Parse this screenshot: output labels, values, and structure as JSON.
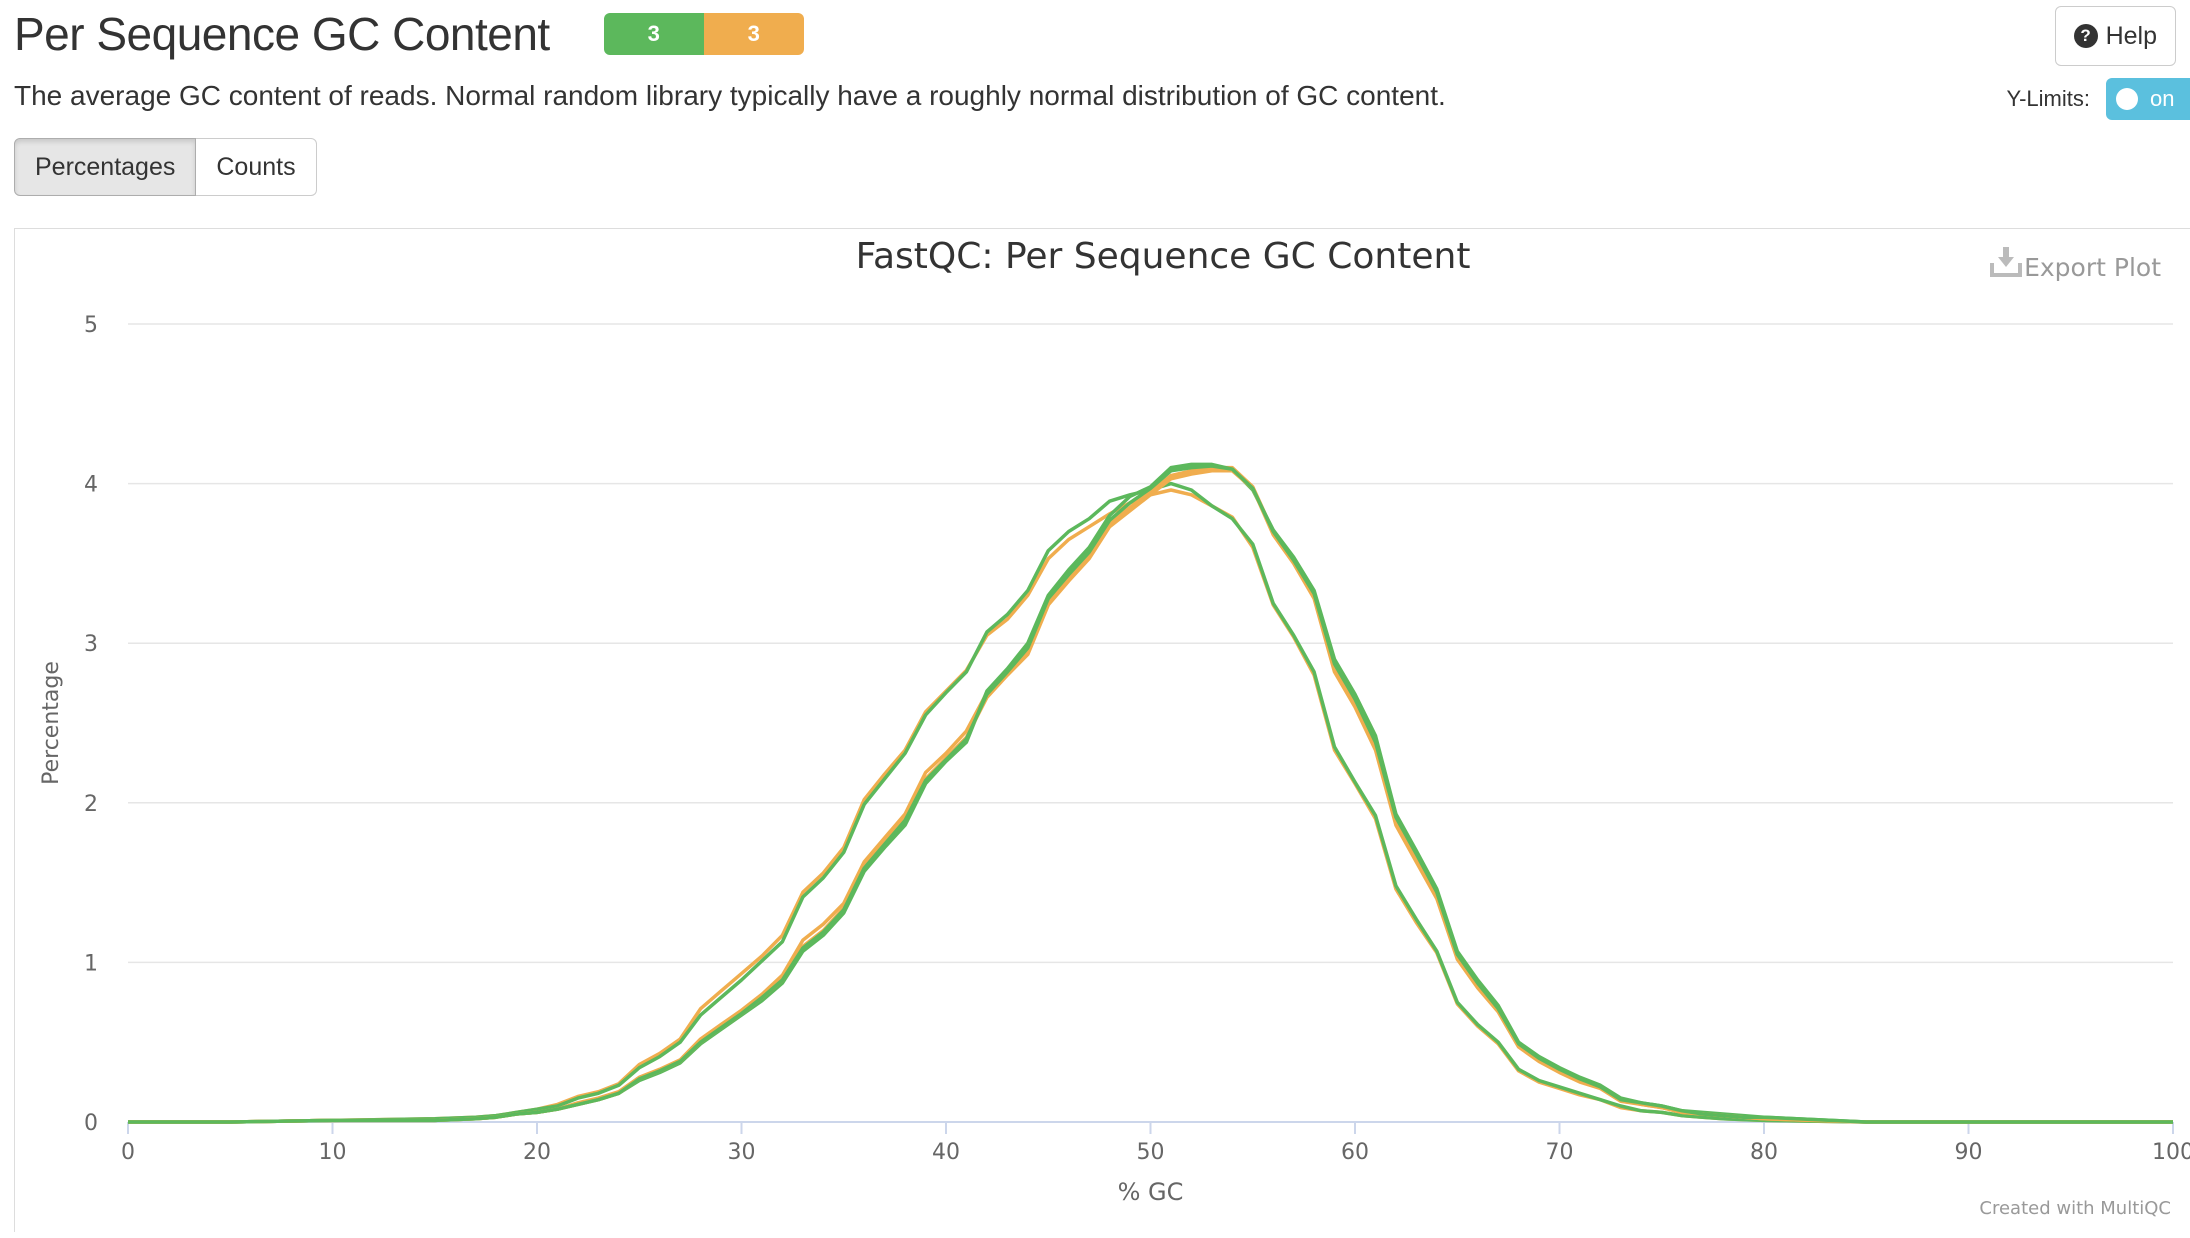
{
  "header": {
    "title": "Per Sequence GC Content",
    "badges": [
      {
        "count": "3",
        "color": "#5cb85c"
      },
      {
        "count": "3",
        "color": "#f0ad4e"
      }
    ],
    "help_label": "Help",
    "help_icon": "question-circle-icon",
    "description": "The average GC content of reads. Normal random library typically have a roughly normal distribution of GC content."
  },
  "controls": {
    "ylimits_label": "Y-Limits:",
    "ylimits_toggle": "on",
    "tabs": [
      {
        "label": "Percentages",
        "active": true
      },
      {
        "label": "Counts",
        "active": false
      }
    ],
    "export_label": "Export Plot",
    "export_icon": "download-icon"
  },
  "footer": {
    "credit": "Created with MultiQC"
  },
  "chart_data": {
    "type": "line",
    "title": "FastQC: Per Sequence GC Content",
    "xlabel": "% GC",
    "ylabel": "Percentage",
    "xlim": [
      0,
      100
    ],
    "ylim": [
      0,
      5
    ],
    "xticks": [
      0,
      10,
      20,
      30,
      40,
      50,
      60,
      70,
      80,
      90,
      100
    ],
    "yticks": [
      0,
      1,
      2,
      3,
      4,
      5
    ],
    "grid": true,
    "x": [
      0,
      5,
      10,
      15,
      17,
      18,
      19,
      20,
      21,
      22,
      23,
      24,
      25,
      26,
      27,
      28,
      29,
      30,
      31,
      32,
      33,
      34,
      35,
      36,
      37,
      38,
      39,
      40,
      41,
      42,
      43,
      44,
      45,
      46,
      47,
      48,
      49,
      50,
      51,
      52,
      53,
      54,
      55,
      56,
      57,
      58,
      59,
      60,
      61,
      62,
      63,
      64,
      65,
      66,
      67,
      68,
      69,
      70,
      71,
      72,
      73,
      74,
      75,
      76,
      77,
      78,
      79,
      80,
      85,
      90,
      95,
      100
    ],
    "series": [
      {
        "color": "#f0ad4e",
        "values": [
          0,
          0,
          0.01,
          0.02,
          0.03,
          0.04,
          0.06,
          0.08,
          0.11,
          0.16,
          0.19,
          0.24,
          0.36,
          0.43,
          0.52,
          0.71,
          0.82,
          0.93,
          1.04,
          1.17,
          1.44,
          1.56,
          1.72,
          2.02,
          2.18,
          2.33,
          2.57,
          2.7,
          2.83,
          3.05,
          3.15,
          3.3,
          3.53,
          3.65,
          3.73,
          3.81,
          3.88,
          3.93,
          3.96,
          3.93,
          3.86,
          3.79,
          3.6,
          3.24,
          3.04,
          2.8,
          2.33,
          2.12,
          1.9,
          1.46,
          1.25,
          1.06,
          0.74,
          0.6,
          0.49,
          0.32,
          0.25,
          0.21,
          0.17,
          0.14,
          0.09,
          0.07,
          0.06,
          0.04,
          0.03,
          0.02,
          0.015,
          0.01,
          0,
          0,
          0,
          0
        ]
      },
      {
        "color": "#5cb85c",
        "values": [
          0,
          0,
          0.01,
          0.02,
          0.03,
          0.04,
          0.06,
          0.08,
          0.1,
          0.15,
          0.18,
          0.23,
          0.34,
          0.41,
          0.5,
          0.67,
          0.78,
          0.89,
          1.01,
          1.13,
          1.41,
          1.53,
          1.69,
          1.99,
          2.15,
          2.31,
          2.55,
          2.69,
          2.82,
          3.07,
          3.18,
          3.33,
          3.58,
          3.7,
          3.78,
          3.89,
          3.93,
          3.96,
          4.0,
          3.96,
          3.86,
          3.78,
          3.62,
          3.25,
          3.05,
          2.82,
          2.35,
          2.13,
          1.92,
          1.48,
          1.27,
          1.07,
          0.75,
          0.61,
          0.5,
          0.33,
          0.26,
          0.22,
          0.18,
          0.14,
          0.1,
          0.07,
          0.06,
          0.04,
          0.03,
          0.02,
          0.015,
          0.01,
          0,
          0,
          0,
          0
        ]
      },
      {
        "color": "#f0ad4e",
        "values": [
          0,
          0,
          0.01,
          0.01,
          0.02,
          0.03,
          0.05,
          0.06,
          0.08,
          0.12,
          0.15,
          0.19,
          0.28,
          0.33,
          0.39,
          0.52,
          0.61,
          0.7,
          0.8,
          0.92,
          1.14,
          1.24,
          1.37,
          1.63,
          1.78,
          1.93,
          2.19,
          2.31,
          2.45,
          2.69,
          2.82,
          2.95,
          3.26,
          3.41,
          3.55,
          3.75,
          3.85,
          3.95,
          4.05,
          4.08,
          4.1,
          4.1,
          3.98,
          3.7,
          3.52,
          3.3,
          2.85,
          2.63,
          2.35,
          1.89,
          1.66,
          1.42,
          1.04,
          0.86,
          0.7,
          0.48,
          0.39,
          0.32,
          0.26,
          0.22,
          0.14,
          0.11,
          0.09,
          0.06,
          0.05,
          0.04,
          0.03,
          0.02,
          0,
          0,
          0,
          0
        ]
      },
      {
        "color": "#5cb85c",
        "values": [
          0,
          0,
          0.01,
          0.01,
          0.02,
          0.03,
          0.05,
          0.06,
          0.08,
          0.11,
          0.14,
          0.18,
          0.26,
          0.31,
          0.37,
          0.49,
          0.58,
          0.67,
          0.76,
          0.87,
          1.07,
          1.17,
          1.31,
          1.57,
          1.72,
          1.86,
          2.12,
          2.26,
          2.38,
          2.7,
          2.84,
          3.0,
          3.3,
          3.46,
          3.6,
          3.8,
          3.92,
          3.98,
          4.1,
          4.12,
          4.12,
          4.09,
          3.96,
          3.71,
          3.54,
          3.33,
          2.9,
          2.68,
          2.42,
          1.93,
          1.7,
          1.46,
          1.07,
          0.89,
          0.73,
          0.5,
          0.41,
          0.34,
          0.28,
          0.23,
          0.15,
          0.12,
          0.1,
          0.07,
          0.06,
          0.05,
          0.04,
          0.03,
          0,
          0,
          0,
          0
        ]
      },
      {
        "color": "#f0ad4e",
        "values": [
          0,
          0,
          0.01,
          0.01,
          0.02,
          0.03,
          0.05,
          0.06,
          0.08,
          0.11,
          0.14,
          0.18,
          0.27,
          0.32,
          0.38,
          0.5,
          0.59,
          0.68,
          0.78,
          0.89,
          1.1,
          1.2,
          1.34,
          1.6,
          1.75,
          1.9,
          2.15,
          2.28,
          2.41,
          2.66,
          2.8,
          2.93,
          3.24,
          3.39,
          3.53,
          3.73,
          3.83,
          3.93,
          4.03,
          4.06,
          4.08,
          4.08,
          3.97,
          3.68,
          3.5,
          3.28,
          2.82,
          2.6,
          2.33,
          1.86,
          1.63,
          1.4,
          1.02,
          0.84,
          0.69,
          0.47,
          0.38,
          0.31,
          0.25,
          0.21,
          0.13,
          0.11,
          0.09,
          0.06,
          0.05,
          0.04,
          0.03,
          0.02,
          0,
          0,
          0,
          0
        ]
      },
      {
        "color": "#5cb85c",
        "values": [
          0,
          0,
          0.01,
          0.01,
          0.02,
          0.03,
          0.05,
          0.06,
          0.08,
          0.11,
          0.14,
          0.18,
          0.27,
          0.32,
          0.38,
          0.5,
          0.59,
          0.68,
          0.78,
          0.89,
          1.09,
          1.19,
          1.33,
          1.59,
          1.74,
          1.89,
          2.14,
          2.27,
          2.4,
          2.68,
          2.82,
          2.97,
          3.28,
          3.43,
          3.57,
          3.77,
          3.88,
          3.97,
          4.08,
          4.1,
          4.11,
          4.09,
          3.97,
          3.7,
          3.52,
          3.31,
          2.87,
          2.65,
          2.38,
          1.91,
          1.68,
          1.44,
          1.05,
          0.87,
          0.71,
          0.49,
          0.4,
          0.33,
          0.27,
          0.22,
          0.14,
          0.12,
          0.1,
          0.07,
          0.05,
          0.04,
          0.03,
          0.03,
          0,
          0,
          0,
          0
        ]
      }
    ]
  }
}
